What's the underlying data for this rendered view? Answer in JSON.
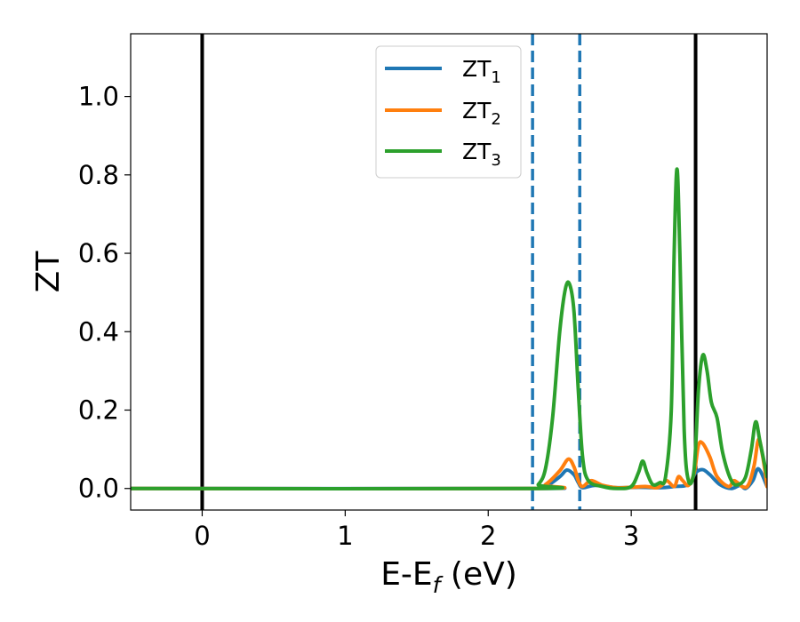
{
  "chart_data": {
    "type": "line",
    "xlabel": "E-E",
    "xlabel_sub": "f",
    "xlabel_unit": " (eV)",
    "ylabel": "ZT",
    "xlim": [
      -0.5,
      3.95
    ],
    "ylim": [
      -0.055,
      1.16
    ],
    "xticks": [
      0,
      1,
      2,
      3
    ],
    "xtick_labels": [
      "0",
      "1",
      "2",
      "3"
    ],
    "yticks": [
      0.0,
      0.2,
      0.4,
      0.6,
      0.8,
      1.0
    ],
    "ytick_labels": [
      "0.0",
      "0.2",
      "0.4",
      "0.6",
      "0.8",
      "1.0"
    ],
    "grid": false,
    "legend_position": "top-center",
    "vlines": [
      {
        "x": 0.0,
        "style": "solid",
        "color": "#000000"
      },
      {
        "x": 3.45,
        "style": "solid",
        "color": "#000000"
      },
      {
        "x": 2.31,
        "style": "dashed",
        "color": "#1f77b4"
      },
      {
        "x": 2.64,
        "style": "dashed",
        "color": "#1f77b4"
      }
    ],
    "series": [
      {
        "name": "ZT",
        "sub": "1",
        "color": "#1f77b4",
        "x": [
          -0.5,
          2.3,
          2.4,
          2.5,
          2.55,
          2.6,
          2.63,
          2.66,
          2.75,
          2.9,
          3.05,
          3.2,
          3.3,
          3.4,
          3.45,
          3.5,
          3.55,
          3.62,
          3.7,
          3.76,
          3.8,
          3.85,
          3.89,
          3.95
        ],
        "y": [
          0.0,
          0.0,
          0.005,
          0.03,
          0.047,
          0.035,
          0.015,
          0.002,
          0.008,
          0.002,
          0.003,
          0.002,
          0.005,
          0.01,
          0.04,
          0.048,
          0.035,
          0.01,
          0.0,
          0.008,
          0.0,
          0.02,
          0.05,
          0.005
        ]
      },
      {
        "name": "ZT",
        "sub": "2",
        "color": "#ff7f0e",
        "x": [
          -0.5,
          2.3,
          2.4,
          2.5,
          2.56,
          2.6,
          2.63,
          2.66,
          2.72,
          2.8,
          2.9,
          3.0,
          3.1,
          3.18,
          3.22,
          3.25,
          3.3,
          3.33,
          3.36,
          3.4,
          3.44,
          3.47,
          3.5,
          3.55,
          3.6,
          3.68,
          3.72,
          3.78,
          3.82,
          3.86,
          3.89,
          3.92,
          3.95
        ],
        "y": [
          0.0,
          0.0,
          0.01,
          0.045,
          0.075,
          0.055,
          0.02,
          0.005,
          0.02,
          0.008,
          0.002,
          0.003,
          0.005,
          0.002,
          0.01,
          0.02,
          0.005,
          0.03,
          0.02,
          0.008,
          0.04,
          0.11,
          0.115,
          0.08,
          0.03,
          0.005,
          0.02,
          0.004,
          0.01,
          0.06,
          0.125,
          0.08,
          0.005
        ]
      },
      {
        "name": "ZT",
        "sub": "3",
        "color": "#2ca02c",
        "x": [
          -0.5,
          2.3,
          2.35,
          2.4,
          2.45,
          2.5,
          2.54,
          2.57,
          2.6,
          2.63,
          2.66,
          2.7,
          2.8,
          2.9,
          3.0,
          3.05,
          3.08,
          3.11,
          3.15,
          3.2,
          3.24,
          3.28,
          3.3,
          3.32,
          3.34,
          3.37,
          3.4,
          3.44,
          3.47,
          3.5,
          3.53,
          3.56,
          3.6,
          3.64,
          3.7,
          3.75,
          3.8,
          3.84,
          3.87,
          3.9,
          3.95
        ],
        "y": [
          0.0,
          0.0,
          0.01,
          0.05,
          0.18,
          0.4,
          0.51,
          0.52,
          0.45,
          0.25,
          0.08,
          0.02,
          0.005,
          0.0,
          0.005,
          0.04,
          0.07,
          0.04,
          0.01,
          0.015,
          0.03,
          0.2,
          0.6,
          0.815,
          0.6,
          0.15,
          0.02,
          0.05,
          0.25,
          0.34,
          0.3,
          0.22,
          0.18,
          0.09,
          0.02,
          0.01,
          0.03,
          0.1,
          0.17,
          0.12,
          0.03
        ]
      }
    ]
  }
}
